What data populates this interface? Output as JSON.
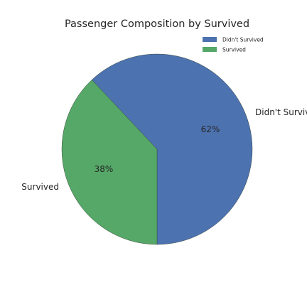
{
  "chart_data": {
    "type": "pie",
    "title": "Passenger Composition by Survived",
    "slices": [
      {
        "label": "Didn't Survived",
        "value": 62,
        "pct_label": "62%",
        "color": "#4c72b0"
      },
      {
        "label": "Survived",
        "value": 38,
        "pct_label": "38%",
        "color": "#55a868"
      }
    ],
    "legend": {
      "position": "upper-right",
      "entries": [
        "Didn't Survived",
        "Survived"
      ]
    }
  }
}
